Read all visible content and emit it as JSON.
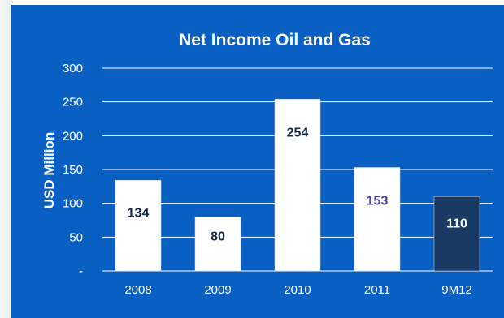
{
  "chart_data": {
    "type": "bar",
    "title": "Net  Income Oil and Gas",
    "ylabel": "USD Million",
    "xlabel": "",
    "categories": [
      "2008",
      "2009",
      "2010",
      "2011",
      "9M12"
    ],
    "values": [
      134,
      80,
      254,
      153,
      110
    ],
    "data_labels": [
      "134",
      "80",
      "254",
      "153",
      "110"
    ],
    "ylim": [
      0,
      300
    ],
    "yticks": [
      {
        "value": 0,
        "label": "-"
      },
      {
        "value": 50,
        "label": "50"
      },
      {
        "value": 100,
        "label": "100"
      },
      {
        "value": 150,
        "label": "150"
      },
      {
        "value": 200,
        "label": "200"
      },
      {
        "value": 250,
        "label": "250"
      },
      {
        "value": 300,
        "label": "300"
      }
    ],
    "grid": true,
    "legend": "none",
    "colors": {
      "background": "#0a5fc2",
      "bar_default": "#ffffff",
      "bar_highlight": "#1b3a63",
      "grid": "#ffffff",
      "label_dark": "#13294b",
      "label_accent": "#4a3f9b",
      "label_on_dark": "#ffffff"
    },
    "bar_styles": [
      "default",
      "default",
      "default",
      "default",
      "highlight"
    ],
    "label_colors": [
      "label_dark",
      "label_dark",
      "label_dark",
      "label_accent",
      "label_on_dark"
    ]
  }
}
